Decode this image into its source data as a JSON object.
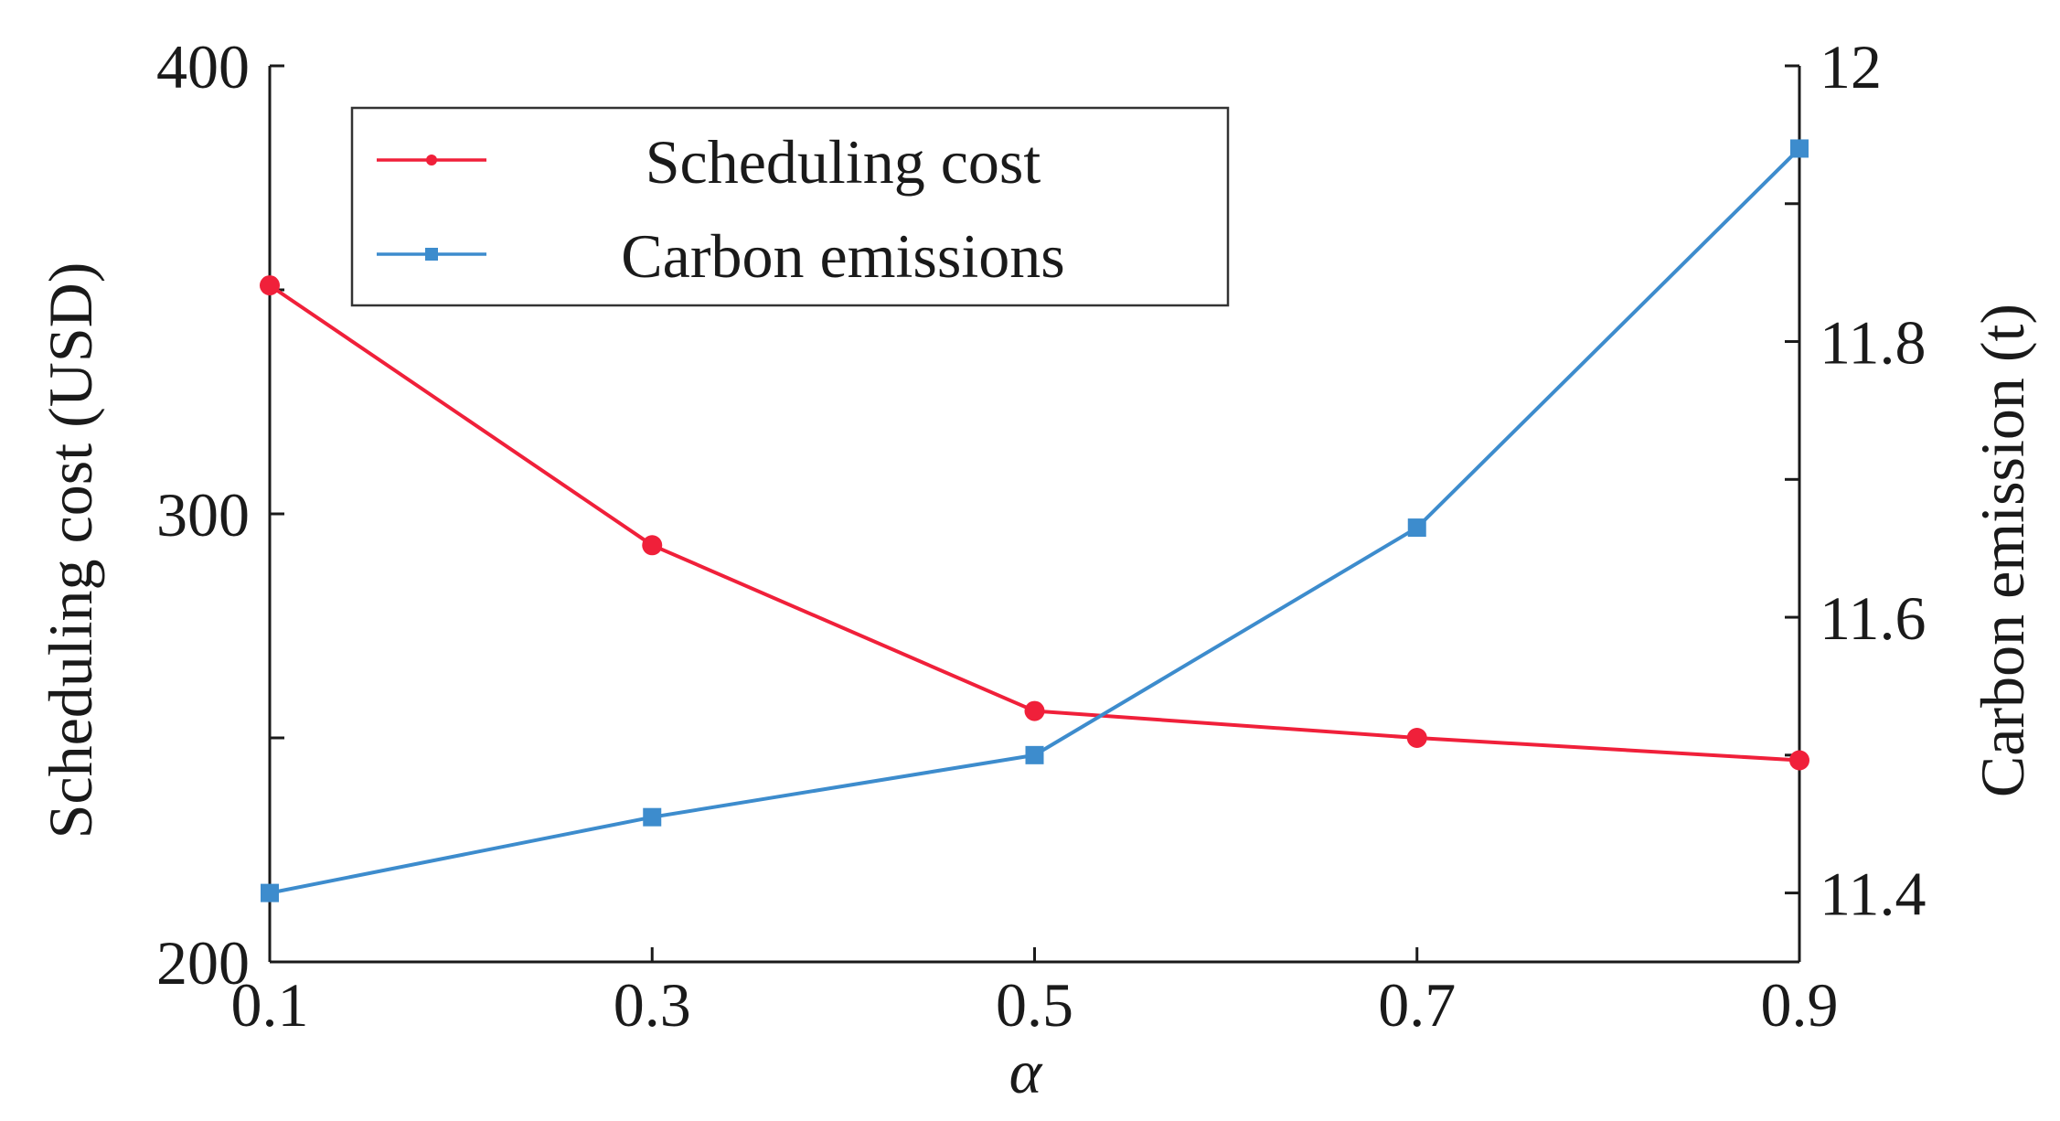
{
  "chart_data": {
    "type": "line",
    "x": [
      0.1,
      0.3,
      0.5,
      0.7,
      0.9
    ],
    "x_tick_labels": [
      "0.1",
      "0.3",
      "0.5",
      "0.7",
      "0.9"
    ],
    "xlabel": "α",
    "xlim": [
      0.1,
      0.9
    ],
    "y_left": {
      "label": "Scheduling cost (USD)",
      "lim": [
        200,
        400
      ],
      "ticks": [
        200,
        250,
        300,
        350,
        400
      ],
      "tick_labels": [
        "200",
        "",
        "300",
        "",
        "400"
      ]
    },
    "y_right": {
      "label": "Carbon emission (t)",
      "lim": [
        11.35,
        12.0
      ],
      "ticks": [
        11.4,
        11.5,
        11.6,
        11.7,
        11.8,
        11.9,
        12.0
      ],
      "tick_labels": [
        "11.4",
        "",
        "11.6",
        "",
        "11.8",
        "",
        "12"
      ]
    },
    "series": [
      {
        "name": "Scheduling cost",
        "axis": "left",
        "color": "#f0203a",
        "marker": "circle",
        "values": [
          351,
          293,
          256,
          250,
          245
        ]
      },
      {
        "name": "Carbon emissions",
        "axis": "right",
        "color": "#3d8ccd",
        "marker": "square",
        "values": [
          11.4,
          11.455,
          11.5,
          11.665,
          11.94
        ]
      }
    ],
    "legend": {
      "position": "top-left",
      "entries": [
        "Scheduling cost",
        "Carbon emissions"
      ]
    }
  }
}
